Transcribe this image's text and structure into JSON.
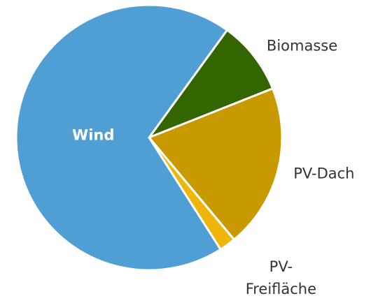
{
  "chart_data": {
    "type": "pie",
    "categories": [
      "Biomasse",
      "PV-Dach",
      "PV-Freifläche",
      "Wind"
    ],
    "values": [
      9,
      20,
      2,
      69
    ],
    "colors": [
      "#336600",
      "#c99a00",
      "#f0b50a",
      "#4f9fd4"
    ]
  }
}
